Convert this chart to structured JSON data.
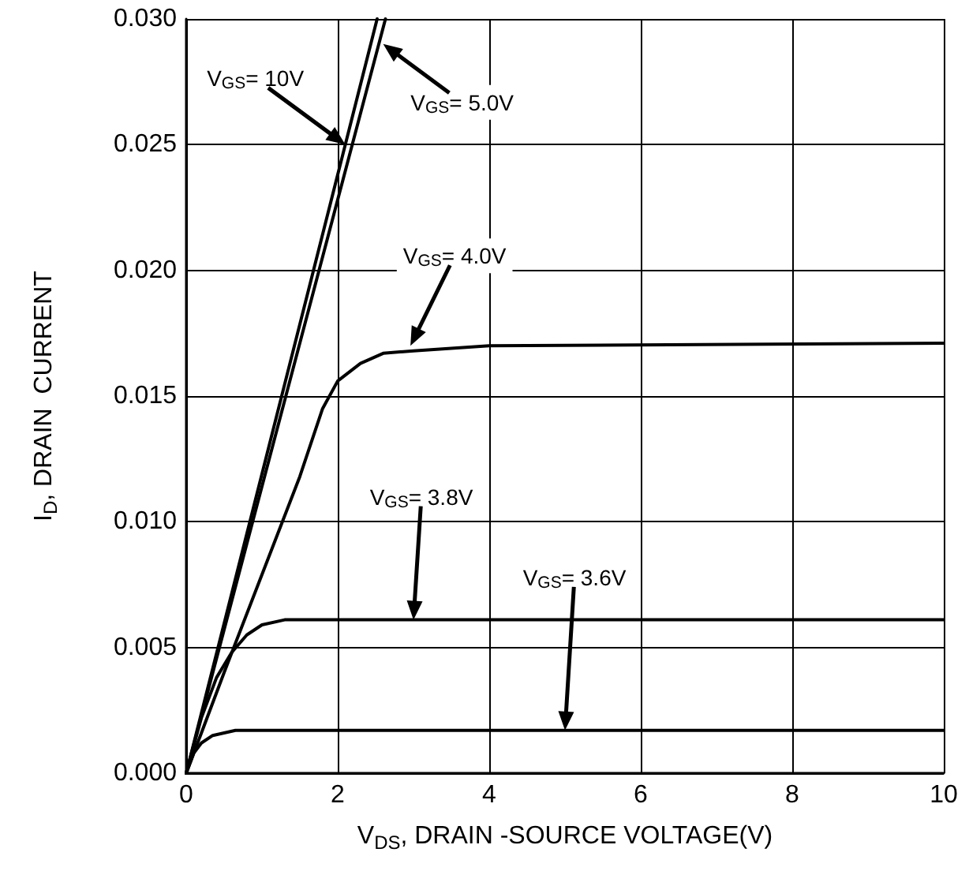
{
  "chart_data": {
    "type": "line",
    "xlabel": "V$_{DS}$, DRAIN -SOURCE VOLTAGE(V)",
    "ylabel": "I$_{D}$, DRAIN  CURRENT",
    "xlim": [
      0,
      10
    ],
    "xticks": [
      0,
      2,
      4,
      6,
      8,
      10
    ],
    "ylim": [
      0,
      0.03
    ],
    "yticks": [
      {
        "value": 0,
        "label": "0.000"
      },
      {
        "value": 0.005,
        "label": "0.005"
      },
      {
        "value": 0.01,
        "label": "0.010"
      },
      {
        "value": 0.015,
        "label": "0.015"
      },
      {
        "value": 0.02,
        "label": "0.020"
      },
      {
        "value": 0.025,
        "label": "0.025"
      },
      {
        "value": 0.03,
        "label": "0.030"
      }
    ],
    "grid": true,
    "marker": "none",
    "line_style": "solid",
    "series": [
      {
        "color": "#000000",
        "x": [
          0,
          2.52
        ],
        "values": [
          0,
          0.03
        ]
      },
      {
        "color": "#000000",
        "x": [
          0,
          2.63
        ],
        "values": [
          0,
          0.03
        ]
      },
      {
        "color": "#000000",
        "x": [
          0,
          0.5,
          1.0,
          1.5,
          1.8,
          2.0,
          2.3,
          2.6,
          3,
          4,
          10
        ],
        "values": [
          0,
          0.004,
          0.0079,
          0.0118,
          0.0145,
          0.0156,
          0.0163,
          0.0167,
          0.0168,
          0.017,
          0.0171
        ]
      },
      {
        "color": "#000000",
        "x": [
          0,
          0.2,
          0.4,
          0.6,
          0.8,
          1.0,
          1.3,
          2,
          10
        ],
        "values": [
          0,
          0.0022,
          0.0038,
          0.0048,
          0.0055,
          0.0059,
          0.0061,
          0.0061,
          0.0061
        ]
      },
      {
        "color": "#000000",
        "x": [
          0,
          0.1,
          0.2,
          0.35,
          0.5,
          0.65,
          1,
          10
        ],
        "values": [
          0,
          0.0008,
          0.0012,
          0.0015,
          0.0016,
          0.0017,
          0.0017,
          0.0017
        ]
      }
    ],
    "annotations": [
      "V$_{GS}$= 10V",
      "V$_{GS}$= 5.0V",
      "V$_{GS}$= 4.0V",
      "V$_{GS}$= 3.8V",
      "V$_{GS}$= 3.6V"
    ]
  }
}
